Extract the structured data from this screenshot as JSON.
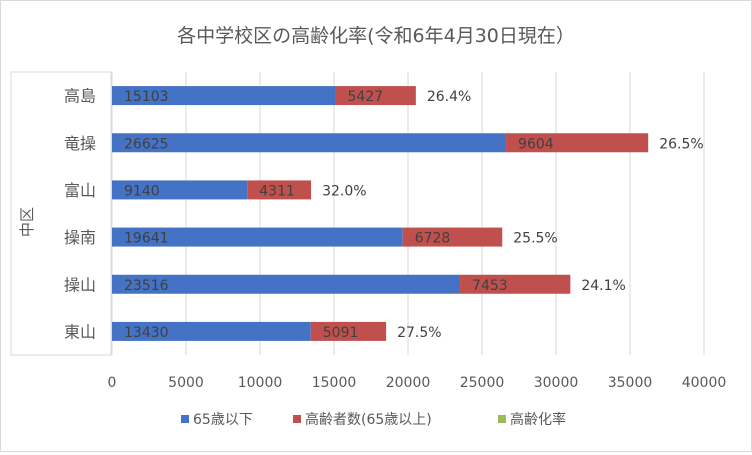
{
  "chart_data": {
    "type": "bar",
    "orientation": "horizontal",
    "stacked": true,
    "title": "各中学校区の高齢化率(令和6年4月30日現在）",
    "ylabel": "中区",
    "xlabel": "",
    "categories": [
      "高島",
      "竜操",
      "富山",
      "操南",
      "操山",
      "東山"
    ],
    "series": [
      {
        "name": "65歳以下",
        "color": "#4472c4",
        "values": [
          15103,
          26625,
          9140,
          19641,
          23516,
          13430
        ],
        "labels": [
          "15103",
          "26625",
          "9140",
          "19641",
          "23516",
          "13430"
        ]
      },
      {
        "name": "高齢者数(65歳以上)",
        "color": "#c0504d",
        "values": [
          5427,
          9604,
          4311,
          6728,
          7453,
          5091
        ],
        "labels": [
          "5427",
          "9604",
          "4311",
          "6728",
          "7453",
          "5091"
        ]
      },
      {
        "name": "高齢化率",
        "color": "#9bbb59",
        "values": [
          26.4,
          26.5,
          32.0,
          25.5,
          24.1,
          27.5
        ],
        "labels": [
          "26.4%",
          "26.5%",
          "32.0%",
          "25.5%",
          "24.1%",
          "27.5%"
        ]
      }
    ],
    "xlim": [
      0,
      40000
    ],
    "xticks": [
      "0",
      "5000",
      "10000",
      "15000",
      "20000",
      "25000",
      "30000",
      "35000",
      "40000"
    ],
    "grid": true,
    "legend": "bottom"
  }
}
